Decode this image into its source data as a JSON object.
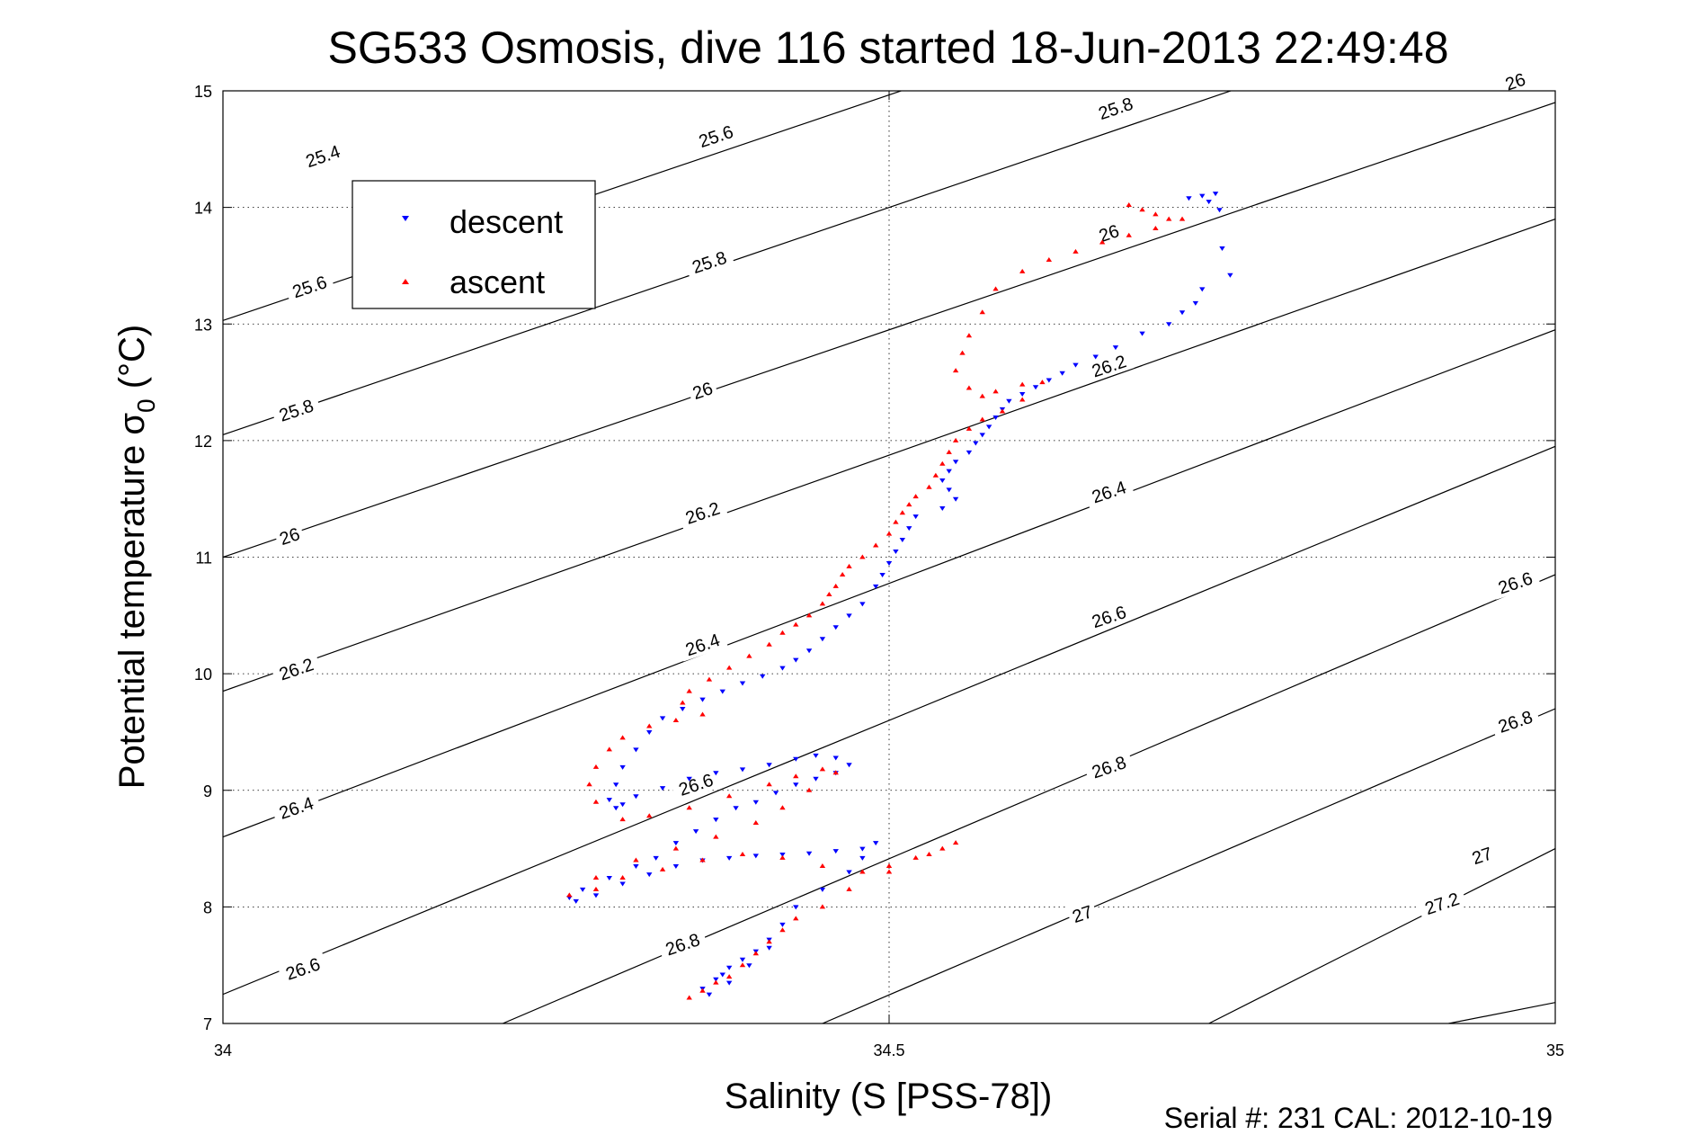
{
  "chart_data": {
    "type": "scatter",
    "title": "SG533 Osmosis, dive 116 started 18-Jun-2013 22:49:48",
    "xlabel": "Salinity (S [PSS-78])",
    "ylabel_main": "Potential temperature σ",
    "ylabel_sub": "0",
    "ylabel_unit": " (°C)",
    "footer": "Serial #: 231  CAL: 2012-10-19",
    "xlim": [
      34,
      35
    ],
    "ylim": [
      7,
      15
    ],
    "x_ticks": [
      "34",
      "34.5",
      "35"
    ],
    "y_ticks": [
      "7",
      "8",
      "9",
      "10",
      "11",
      "12",
      "13",
      "14",
      "15"
    ],
    "grid": "dotted at x=34.5 and every y tick",
    "legend_position": "upper-left",
    "isopycnals": {
      "line_color": "#000000",
      "lines": [
        {
          "x": [
            34.0,
            35.0
          ],
          "y": [
            13.03,
            16.9
          ]
        },
        {
          "x": [
            34.0,
            35.0
          ],
          "y": [
            12.05,
            15.95
          ]
        },
        {
          "x": [
            34.0,
            35.0
          ],
          "y": [
            11.0,
            14.9
          ]
        },
        {
          "x": [
            34.0,
            35.0
          ],
          "y": [
            9.85,
            13.9
          ]
        },
        {
          "x": [
            34.0,
            35.0
          ],
          "y": [
            8.6,
            12.95
          ]
        },
        {
          "x": [
            34.0,
            35.0
          ],
          "y": [
            7.25,
            11.95
          ]
        },
        {
          "x": [
            34.21,
            35.0
          ],
          "y": [
            7.0,
            10.85
          ]
        },
        {
          "x": [
            34.45,
            35.0
          ],
          "y": [
            7.0,
            9.7
          ]
        },
        {
          "x": [
            34.74,
            35.0
          ],
          "y": [
            7.0,
            8.5
          ]
        },
        {
          "x": [
            34.92,
            35.0
          ],
          "y": [
            7.0,
            7.18
          ]
        }
      ],
      "labels": [
        {
          "text": "25.4",
          "x": 34.075,
          "y": 14.44
        },
        {
          "text": "25.6",
          "x": 34.37,
          "y": 14.61
        },
        {
          "text": "25.8",
          "x": 34.67,
          "y": 14.85
        },
        {
          "text": "26",
          "x": 34.97,
          "y": 15.08
        },
        {
          "text": "25.6",
          "x": 34.065,
          "y": 13.32
        },
        {
          "text": "25.8",
          "x": 34.365,
          "y": 13.53
        },
        {
          "text": "26",
          "x": 34.665,
          "y": 13.78
        },
        {
          "text": "25.8",
          "x": 34.055,
          "y": 12.26
        },
        {
          "text": "26",
          "x": 34.36,
          "y": 12.43
        },
        {
          "text": "26.2",
          "x": 34.665,
          "y": 12.64
        },
        {
          "text": "26",
          "x": 34.05,
          "y": 11.18
        },
        {
          "text": "26.2",
          "x": 34.36,
          "y": 11.38
        },
        {
          "text": "26.4",
          "x": 34.665,
          "y": 11.56
        },
        {
          "text": "26.2",
          "x": 34.055,
          "y": 10.04
        },
        {
          "text": "26.4",
          "x": 34.36,
          "y": 10.25
        },
        {
          "text": "26.6",
          "x": 34.665,
          "y": 10.49
        },
        {
          "text": "26.6",
          "x": 34.97,
          "y": 10.78
        },
        {
          "text": "26.4",
          "x": 34.055,
          "y": 8.85
        },
        {
          "text": "26.6",
          "x": 34.355,
          "y": 9.05
        },
        {
          "text": "26.8",
          "x": 34.665,
          "y": 9.2
        },
        {
          "text": "26.8",
          "x": 34.97,
          "y": 9.59
        },
        {
          "text": "26.6",
          "x": 34.06,
          "y": 7.47
        },
        {
          "text": "26.8",
          "x": 34.345,
          "y": 7.68
        },
        {
          "text": "27",
          "x": 34.645,
          "y": 7.94
        },
        {
          "text": "27",
          "x": 34.945,
          "y": 8.44
        },
        {
          "text": "27.2",
          "x": 34.915,
          "y": 8.03
        }
      ]
    },
    "series": [
      {
        "name": "descent",
        "color": "#0000ff",
        "marker": "triangle-down",
        "x": [
          34.745,
          34.735,
          34.725,
          34.74,
          34.748,
          34.75,
          34.756,
          34.735,
          34.73,
          34.72,
          34.71,
          34.69,
          34.67,
          34.655,
          34.64,
          34.63,
          34.62,
          34.61,
          34.6,
          34.59,
          34.585,
          34.58,
          34.575,
          34.57,
          34.565,
          34.56,
          34.55,
          34.545,
          34.54,
          34.545,
          34.55,
          34.54,
          34.52,
          34.515,
          34.51,
          34.505,
          34.5,
          34.495,
          34.49,
          34.48,
          34.47,
          34.46,
          34.45,
          34.44,
          34.43,
          34.42,
          34.405,
          34.39,
          34.375,
          34.36,
          34.345,
          34.33,
          34.32,
          34.31,
          34.3,
          34.295,
          34.29,
          34.295,
          34.3,
          34.31,
          34.33,
          34.35,
          34.37,
          34.39,
          34.41,
          34.43,
          34.445,
          34.46,
          34.47,
          34.46,
          34.445,
          34.43,
          34.415,
          34.4,
          34.385,
          34.37,
          34.355,
          34.34,
          34.325,
          34.31,
          34.29,
          34.27,
          34.26,
          34.265,
          34.28,
          34.3,
          34.32,
          34.34,
          34.36,
          34.38,
          34.4,
          34.42,
          34.44,
          34.46,
          34.48,
          34.49,
          34.48,
          34.47,
          34.45,
          34.43,
          34.42,
          34.41,
          34.4,
          34.39,
          34.38,
          34.375,
          34.37,
          34.36,
          34.365,
          34.38,
          34.395,
          34.41
        ],
        "y": [
          14.12,
          14.1,
          14.08,
          14.05,
          13.98,
          13.65,
          13.42,
          13.3,
          13.18,
          13.1,
          13.0,
          12.92,
          12.8,
          12.72,
          12.65,
          12.58,
          12.52,
          12.46,
          12.4,
          12.34,
          12.27,
          12.2,
          12.12,
          12.05,
          11.98,
          11.9,
          11.82,
          11.74,
          11.66,
          11.58,
          11.5,
          11.42,
          11.35,
          11.25,
          11.15,
          11.05,
          10.95,
          10.85,
          10.75,
          10.6,
          10.5,
          10.4,
          10.3,
          10.2,
          10.12,
          10.05,
          9.98,
          9.92,
          9.85,
          9.78,
          9.7,
          9.62,
          9.5,
          9.35,
          9.2,
          9.05,
          8.92,
          8.85,
          8.88,
          8.95,
          9.02,
          9.1,
          9.15,
          9.18,
          9.22,
          9.27,
          9.3,
          9.28,
          9.22,
          9.15,
          9.1,
          9.05,
          8.98,
          8.9,
          8.85,
          8.75,
          8.65,
          8.55,
          8.42,
          8.35,
          8.25,
          8.15,
          8.08,
          8.05,
          8.1,
          8.2,
          8.28,
          8.35,
          8.4,
          8.42,
          8.44,
          8.45,
          8.46,
          8.48,
          8.5,
          8.55,
          8.42,
          8.3,
          8.15,
          8.0,
          7.85,
          7.72,
          7.62,
          7.55,
          7.48,
          7.42,
          7.38,
          7.3,
          7.25,
          7.35,
          7.5,
          7.65
        ]
      },
      {
        "name": "ascent",
        "color": "#ff0000",
        "marker": "triangle-up",
        "x": [
          34.68,
          34.69,
          34.7,
          34.71,
          34.72,
          34.7,
          34.68,
          34.66,
          34.64,
          34.62,
          34.6,
          34.58,
          34.57,
          34.56,
          34.555,
          34.55,
          34.56,
          34.57,
          34.58,
          34.6,
          34.615,
          34.6,
          34.585,
          34.57,
          34.56,
          34.55,
          34.545,
          34.54,
          34.535,
          34.53,
          34.52,
          34.515,
          34.51,
          34.505,
          34.5,
          34.49,
          34.48,
          34.47,
          34.465,
          34.46,
          34.455,
          34.45,
          34.44,
          34.43,
          34.42,
          34.41,
          34.395,
          34.38,
          34.365,
          34.35,
          34.345,
          34.36,
          34.34,
          34.32,
          34.3,
          34.29,
          34.28,
          34.275,
          34.28,
          34.3,
          34.32,
          34.35,
          34.38,
          34.41,
          34.43,
          34.45,
          34.46,
          34.44,
          34.42,
          34.4,
          34.37,
          34.34,
          34.31,
          34.28,
          34.26,
          34.28,
          34.3,
          34.33,
          34.36,
          34.39,
          34.42,
          34.45,
          34.48,
          34.5,
          34.52,
          34.54,
          34.55,
          34.53,
          34.5,
          34.47,
          34.45,
          34.43,
          34.42,
          34.41,
          34.4,
          34.39,
          34.38,
          34.37,
          34.36,
          34.35
        ],
        "y": [
          14.02,
          13.98,
          13.94,
          13.9,
          13.9,
          13.82,
          13.76,
          13.7,
          13.62,
          13.55,
          13.45,
          13.3,
          13.1,
          12.9,
          12.75,
          12.6,
          12.45,
          12.38,
          12.42,
          12.48,
          12.5,
          12.35,
          12.25,
          12.18,
          12.1,
          12.0,
          11.9,
          11.8,
          11.7,
          11.6,
          11.52,
          11.45,
          11.38,
          11.3,
          11.2,
          11.1,
          11.0,
          10.92,
          10.85,
          10.75,
          10.68,
          10.6,
          10.5,
          10.42,
          10.35,
          10.25,
          10.15,
          10.05,
          9.95,
          9.85,
          9.75,
          9.65,
          9.6,
          9.55,
          9.45,
          9.35,
          9.2,
          9.05,
          8.9,
          8.75,
          8.78,
          8.85,
          8.95,
          9.05,
          9.12,
          9.18,
          9.15,
          9.0,
          8.85,
          8.72,
          8.6,
          8.5,
          8.4,
          8.25,
          8.1,
          8.15,
          8.25,
          8.32,
          8.4,
          8.45,
          8.42,
          8.35,
          8.3,
          8.35,
          8.42,
          8.5,
          8.55,
          8.45,
          8.3,
          8.15,
          8.0,
          7.9,
          7.8,
          7.7,
          7.6,
          7.5,
          7.4,
          7.35,
          7.28,
          7.22
        ]
      }
    ]
  }
}
